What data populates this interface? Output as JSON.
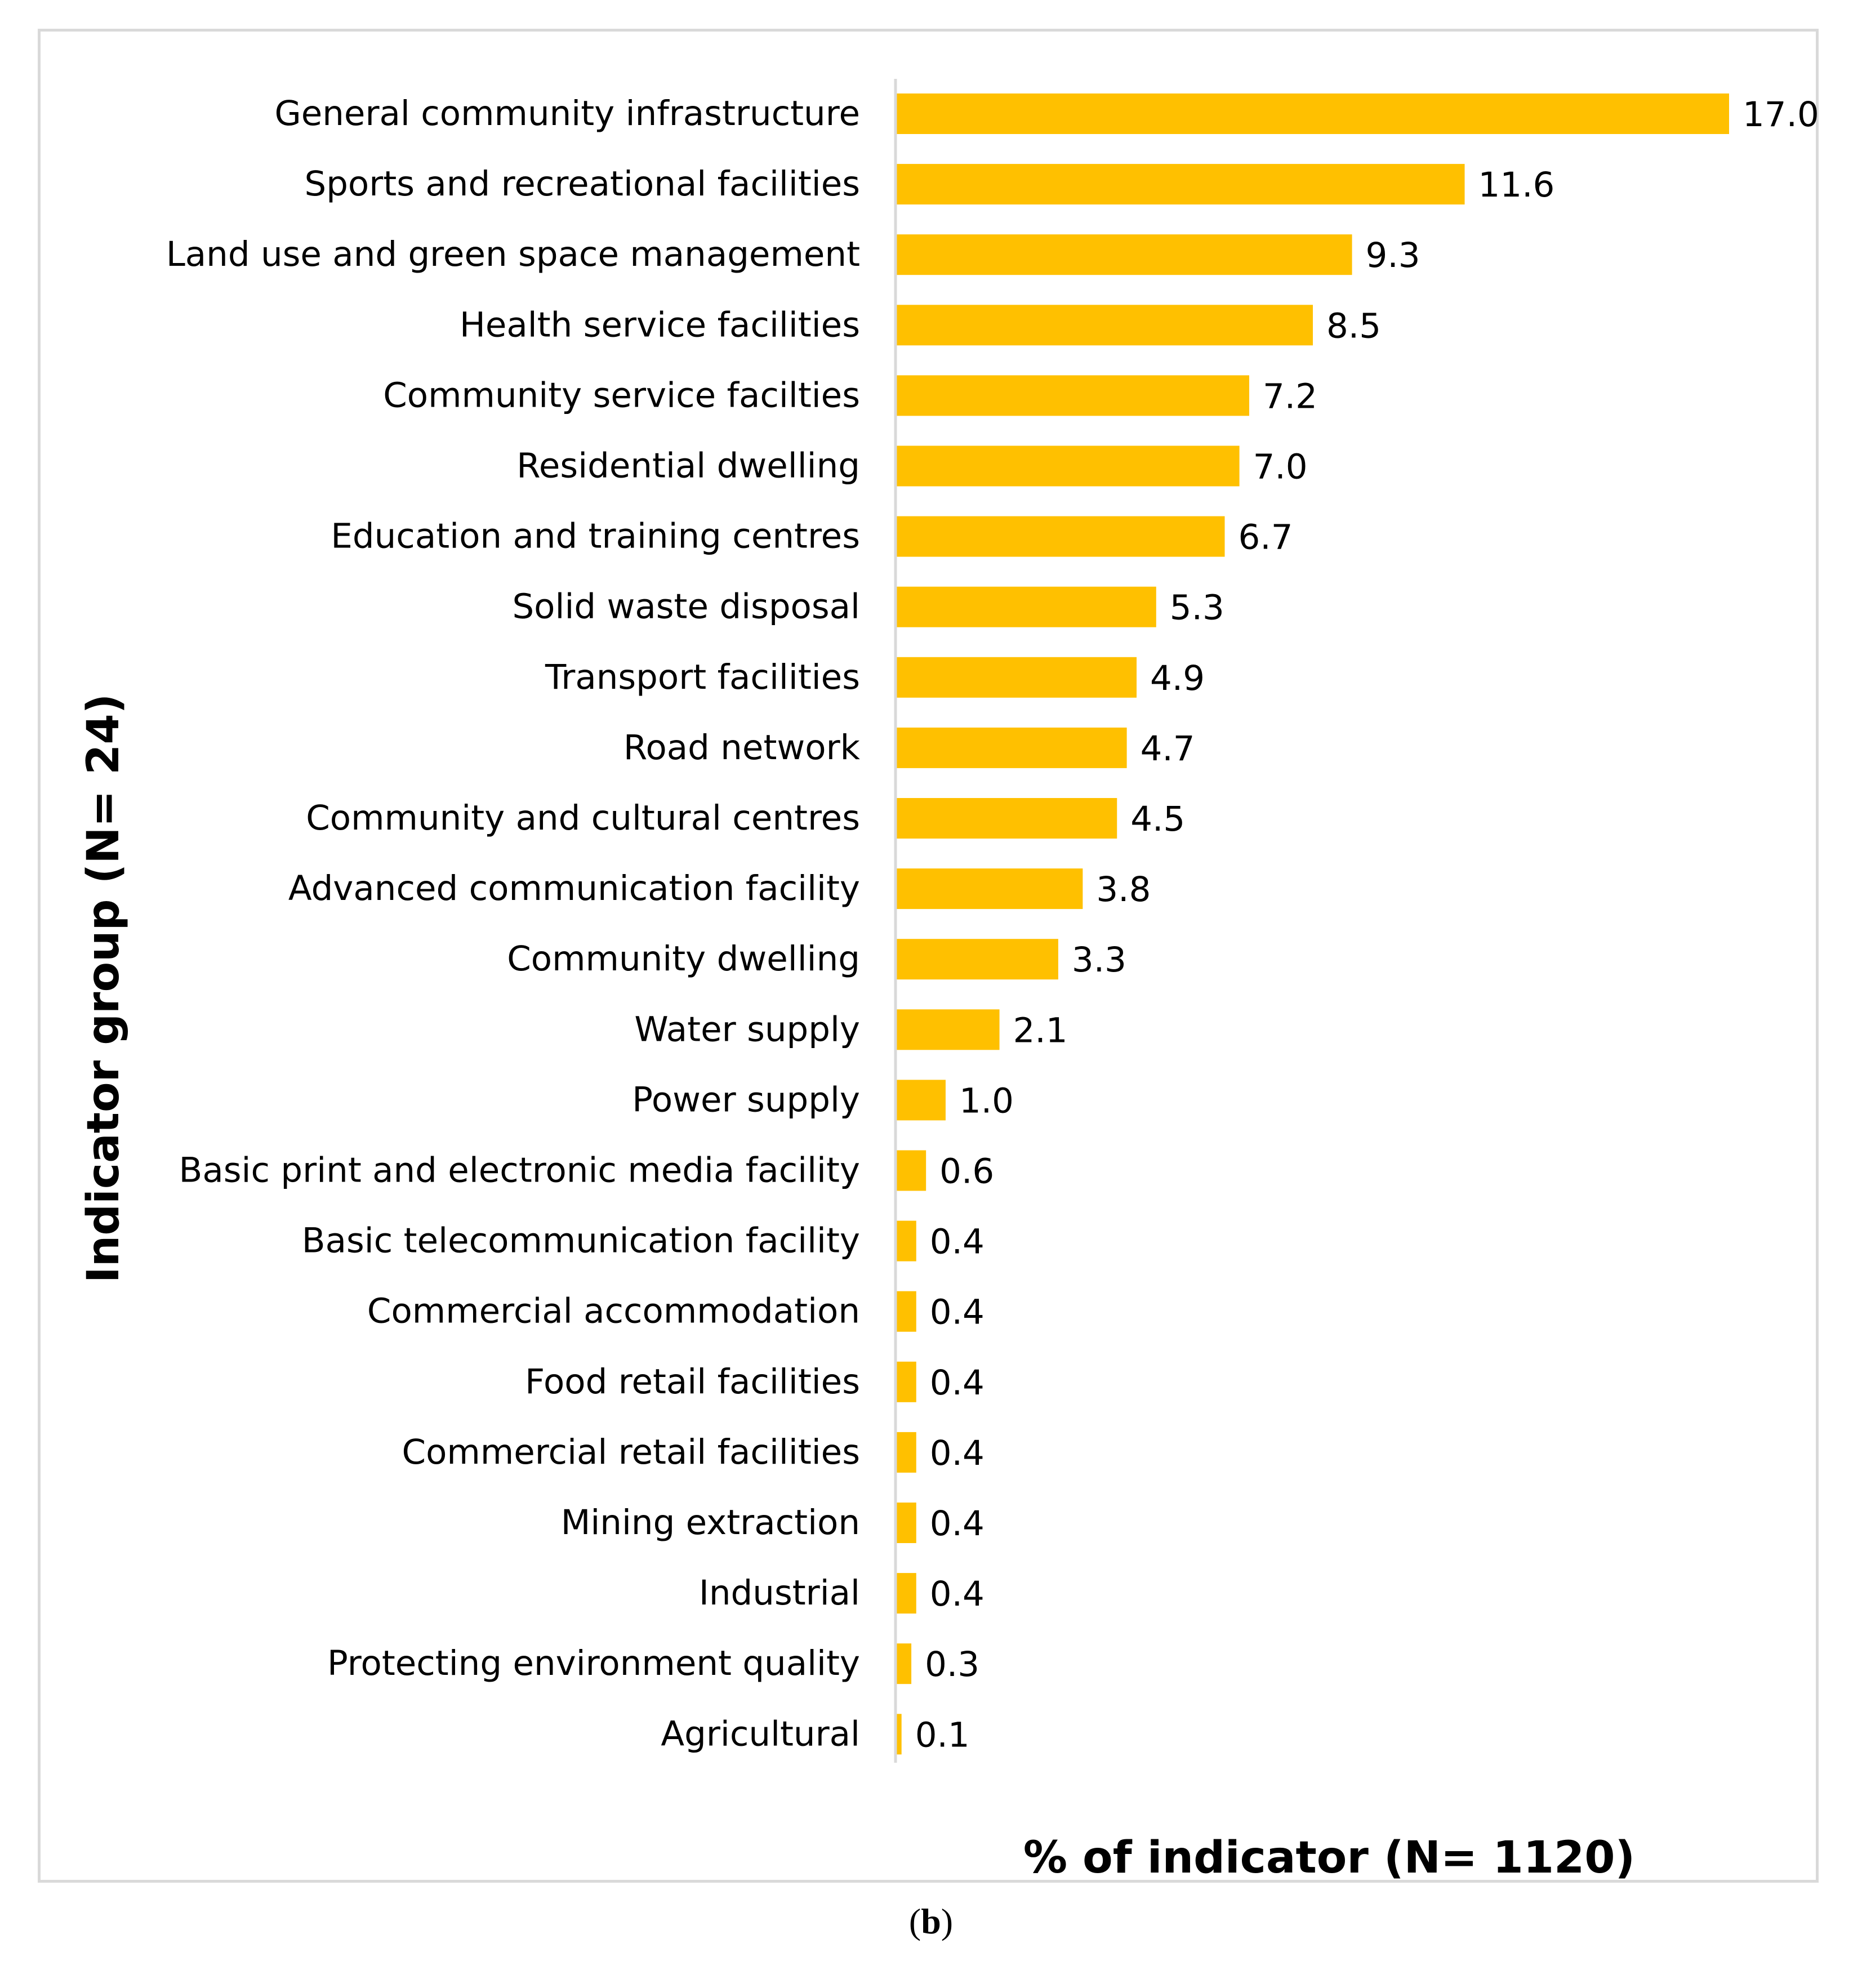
{
  "chart_data": {
    "type": "bar",
    "orientation": "horizontal",
    "categories": [
      "General community infrastructure",
      "Sports and recreational facilities",
      "Land use and green space management",
      "Health service facilities",
      "Community service facilties",
      "Residential dwelling",
      "Education and training centres",
      "Solid waste disposal",
      "Transport facilities",
      "Road network",
      "Community and cultural centres",
      "Advanced communication facility",
      "Community dwelling",
      "Water supply",
      "Power supply",
      "Basic print and electronic media facility",
      "Basic telecommunication facility",
      "Commercial accommodation",
      "Food retail facilities",
      "Commercial retail facilities",
      "Mining extraction",
      "Industrial",
      "Protecting environment quality",
      "Agricultural"
    ],
    "values": [
      17.0,
      11.6,
      9.3,
      8.5,
      7.2,
      7.0,
      6.7,
      5.3,
      4.9,
      4.7,
      4.5,
      3.8,
      3.3,
      2.1,
      1.0,
      0.6,
      0.4,
      0.4,
      0.4,
      0.4,
      0.4,
      0.4,
      0.3,
      0.1
    ],
    "value_labels": [
      "17.0",
      "11.6",
      "9.3",
      "8.5",
      "7.2",
      "7.0",
      "6.7",
      "5.3",
      "4.9",
      "4.7",
      "4.5",
      "3.8",
      "3.3",
      "2.1",
      "1.0",
      "0.6",
      "0.4",
      "0.4",
      "0.4",
      "0.4",
      "0.4",
      "0.4",
      "0.3",
      "0.1"
    ],
    "xlabel": "% of indicator (N= 1120)",
    "ylabel": "Indicator group (N= 24)",
    "xlim": [
      0,
      17.0
    ],
    "grid": false,
    "bar_color": "#ffc000",
    "axis_color": "#d9d9d9"
  },
  "caption": {
    "open": "(",
    "letter": "b",
    "close": ")"
  }
}
